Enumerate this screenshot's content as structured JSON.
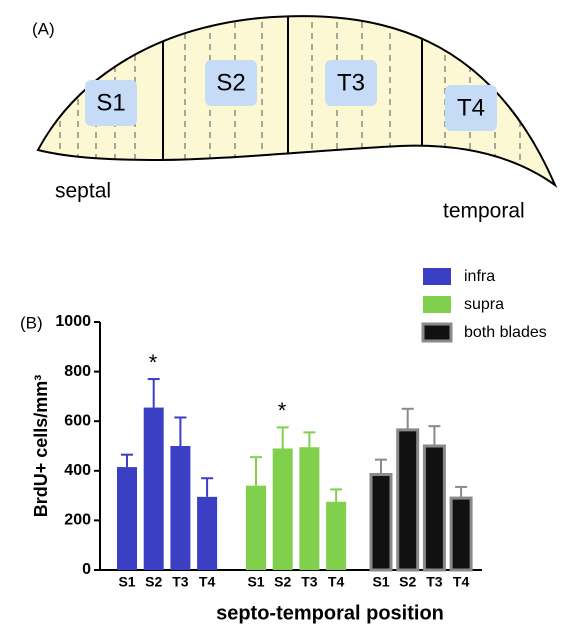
{
  "diagram": {
    "label": "(A)",
    "regions": [
      "S1",
      "S2",
      "T3",
      "T4"
    ],
    "ends": [
      "septal",
      "temporal"
    ]
  },
  "chart_data": {
    "type": "bar",
    "panel_label": "(B)",
    "y_label": "BrdU+ cells/mm³",
    "x_label": "septo-temporal position",
    "categories": [
      "S1",
      "S2",
      "T3",
      "T4"
    ],
    "series": [
      {
        "name": "infra",
        "color": "#3b3fc4",
        "values": [
          415,
          655,
          500,
          295
        ],
        "errors": [
          50,
          115,
          115,
          75
        ]
      },
      {
        "name": "supra",
        "color": "#80d04e",
        "values": [
          340,
          490,
          495,
          275
        ],
        "errors": [
          115,
          85,
          60,
          50
        ]
      },
      {
        "name": "both blades",
        "color": "#111111",
        "edge": "#8a8a8a",
        "values": [
          385,
          565,
          500,
          290
        ],
        "errors": [
          60,
          85,
          80,
          45
        ]
      }
    ],
    "annotations": [
      "*",
      "*"
    ],
    "ylim": [
      0,
      1000
    ],
    "yticks": [
      0,
      200,
      400,
      600,
      800,
      1000
    ]
  }
}
